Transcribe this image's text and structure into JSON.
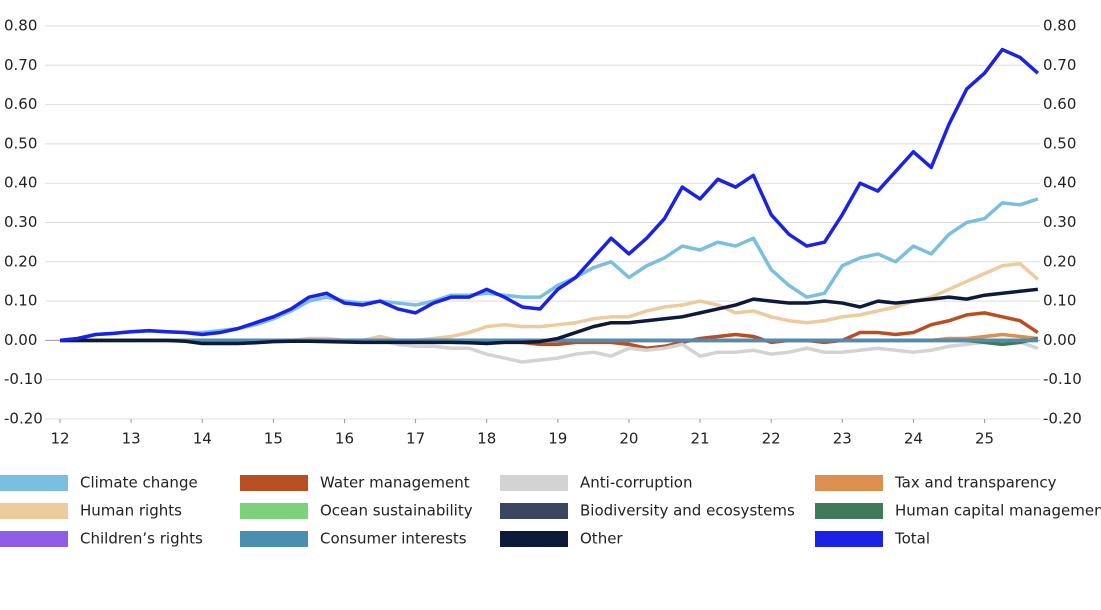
{
  "chart_data": {
    "type": "line",
    "x": [
      12,
      12.25,
      12.5,
      12.75,
      13,
      13.25,
      13.5,
      13.75,
      14,
      14.25,
      14.5,
      14.75,
      15,
      15.25,
      15.5,
      15.75,
      16,
      16.25,
      16.5,
      16.75,
      17,
      17.25,
      17.5,
      17.75,
      18,
      18.25,
      18.5,
      18.75,
      19,
      19.25,
      19.5,
      19.75,
      20,
      20.25,
      20.5,
      20.75,
      21,
      21.25,
      21.5,
      21.75,
      22,
      22.25,
      22.5,
      22.75,
      23,
      23.25,
      23.5,
      23.75,
      24,
      24.25,
      24.5,
      24.75,
      25,
      25.25,
      25.5,
      25.75
    ],
    "xlim": [
      12,
      25.78
    ],
    "xticks": [
      12,
      13,
      14,
      15,
      16,
      17,
      18,
      19,
      20,
      21,
      22,
      23,
      24,
      25
    ],
    "ylim": [
      -0.2,
      0.8
    ],
    "yticks": [
      {
        "value": -0.2,
        "label": "-0.20"
      },
      {
        "value": -0.1,
        "label": "-0.10"
      },
      {
        "value": 0,
        "label": "0.00"
      },
      {
        "value": 0.1,
        "label": "0.10"
      },
      {
        "value": 0.2,
        "label": "0.20"
      },
      {
        "value": 0.3,
        "label": "0.30"
      },
      {
        "value": 0.4,
        "label": "0.40"
      },
      {
        "value": 0.5,
        "label": "0.50"
      },
      {
        "value": 0.6,
        "label": "0.60"
      },
      {
        "value": 0.7,
        "label": "0.70"
      },
      {
        "value": 0.8,
        "label": "0.80"
      }
    ],
    "grid": true,
    "legend": "bottom",
    "series": [
      {
        "name": "Climate change",
        "color": "#7bbfe0",
        "values": [
          0,
          0.005,
          0.015,
          0.018,
          0.022,
          0.024,
          0.022,
          0.02,
          0.02,
          0.025,
          0.03,
          0.04,
          0.055,
          0.075,
          0.1,
          0.11,
          0.1,
          0.095,
          0.1,
          0.095,
          0.09,
          0.1,
          0.115,
          0.115,
          0.12,
          0.115,
          0.11,
          0.11,
          0.14,
          0.16,
          0.185,
          0.2,
          0.16,
          0.19,
          0.21,
          0.24,
          0.23,
          0.25,
          0.24,
          0.26,
          0.18,
          0.14,
          0.11,
          0.12,
          0.19,
          0.21,
          0.22,
          0.2,
          0.24,
          0.22,
          0.27,
          0.3,
          0.31,
          0.35,
          0.345,
          0.36
        ]
      },
      {
        "name": "Water management",
        "color": "#b94e21",
        "values": [
          0,
          0,
          0,
          0,
          0,
          0,
          0,
          0,
          0,
          0,
          0,
          0,
          0,
          0,
          0,
          0,
          0,
          0,
          0,
          0,
          0,
          0,
          0,
          0,
          0,
          0,
          -0.005,
          -0.01,
          -0.01,
          -0.005,
          -0.005,
          -0.005,
          -0.01,
          -0.02,
          -0.015,
          -0.005,
          0.005,
          0.01,
          0.015,
          0.01,
          -0.005,
          0,
          0,
          -0.005,
          0,
          0.02,
          0.02,
          0.015,
          0.02,
          0.04,
          0.05,
          0.065,
          0.07,
          0.06,
          0.05,
          0.02
        ]
      },
      {
        "name": "Anti-corruption",
        "color": "#d3d3d3",
        "values": [
          0,
          0,
          0,
          0,
          0,
          0,
          0,
          0,
          0,
          0,
          0,
          0,
          0,
          0,
          0,
          0,
          0,
          0,
          0,
          -0.01,
          -0.015,
          -0.015,
          -0.02,
          -0.02,
          -0.035,
          -0.045,
          -0.055,
          -0.05,
          -0.045,
          -0.035,
          -0.03,
          -0.04,
          -0.02,
          -0.025,
          -0.02,
          -0.01,
          -0.04,
          -0.03,
          -0.03,
          -0.025,
          -0.035,
          -0.03,
          -0.02,
          -0.03,
          -0.03,
          -0.025,
          -0.02,
          -0.025,
          -0.03,
          -0.025,
          -0.015,
          -0.01,
          -0.005,
          -0.01,
          -0.005,
          -0.02
        ]
      },
      {
        "name": "Tax and transparency",
        "color": "#dd8f4d",
        "values": [
          0,
          0,
          0,
          0,
          0,
          0,
          0,
          0,
          0,
          0,
          0,
          0,
          0,
          0,
          0,
          0,
          0,
          0,
          0,
          0,
          0,
          0,
          0,
          0,
          0,
          0,
          0,
          0,
          0,
          0,
          0,
          0,
          0,
          0,
          0,
          0,
          0,
          0,
          0,
          0,
          0,
          0,
          0,
          0,
          0,
          0,
          0,
          0,
          0,
          0,
          0.005,
          0.005,
          0.01,
          0.015,
          0.01,
          0.005
        ]
      },
      {
        "name": "Human rights",
        "color": "#eccb9c",
        "values": [
          0,
          0,
          0,
          0,
          0,
          0,
          0,
          0,
          0,
          0,
          0,
          0,
          0,
          0,
          0.005,
          0.005,
          0,
          0,
          0.01,
          0,
          0,
          0.005,
          0.01,
          0.02,
          0.035,
          0.04,
          0.035,
          0.035,
          0.04,
          0.045,
          0.055,
          0.06,
          0.06,
          0.075,
          0.085,
          0.09,
          0.1,
          0.09,
          0.07,
          0.075,
          0.06,
          0.05,
          0.045,
          0.05,
          0.06,
          0.065,
          0.075,
          0.085,
          0.1,
          0.11,
          0.13,
          0.15,
          0.17,
          0.19,
          0.195,
          0.155
        ]
      },
      {
        "name": "Ocean sustainability",
        "color": "#7dd17a",
        "values": [
          0,
          0,
          0,
          0,
          0,
          0,
          0,
          0,
          0,
          0,
          0,
          0,
          0,
          0,
          0,
          0,
          0,
          0,
          0,
          0,
          0,
          0,
          0,
          0,
          0,
          0,
          0,
          0,
          0,
          0,
          0,
          0,
          0,
          0,
          0,
          0,
          0,
          0,
          0,
          0,
          0,
          0,
          0,
          0,
          0,
          0,
          0,
          0,
          0,
          0,
          0,
          0,
          0,
          0,
          0,
          0
        ]
      },
      {
        "name": "Biodiversity and ecosystems",
        "color": "#3a4660",
        "values": [
          0,
          0,
          0,
          0,
          0,
          0,
          0,
          0,
          0,
          0,
          0,
          0,
          0,
          0,
          0,
          0,
          0,
          0,
          0,
          0,
          0,
          0,
          0,
          0,
          0,
          0,
          0,
          0,
          0,
          0,
          0,
          0,
          0,
          0,
          0,
          0,
          0,
          0,
          0,
          0,
          0,
          0,
          0,
          0,
          0,
          0,
          0,
          0,
          0,
          0,
          0,
          0,
          0,
          0,
          0,
          0
        ]
      },
      {
        "name": "Human capital management",
        "color": "#3f7a5a",
        "values": [
          0,
          0,
          0,
          0,
          0,
          0,
          0,
          0,
          0,
          0,
          0,
          0,
          0,
          0,
          0,
          0,
          0,
          0,
          0,
          0,
          0,
          0,
          0,
          0,
          0,
          0,
          0,
          0,
          0,
          0,
          0,
          0,
          0,
          0,
          0,
          0,
          0,
          0,
          0,
          0,
          0,
          0,
          0,
          0,
          0,
          0,
          0,
          0,
          0,
          0,
          0,
          0,
          -0.005,
          -0.01,
          -0.005,
          0.005
        ]
      },
      {
        "name": "Children’s rights",
        "color": "#8f5ce6",
        "values": [
          0,
          0,
          0,
          0,
          0,
          0,
          0,
          0,
          0,
          0,
          0,
          0,
          0,
          0,
          0,
          0,
          0,
          0,
          0,
          0,
          0,
          0,
          0,
          0,
          0,
          0,
          0,
          0,
          0,
          0,
          0,
          0,
          0,
          0,
          0,
          0,
          0,
          0,
          0,
          0,
          0,
          0,
          0,
          0,
          0,
          0,
          0,
          0,
          0,
          0,
          0,
          0,
          0,
          0,
          0,
          0
        ]
      },
      {
        "name": "Consumer interests",
        "color": "#4b8fb0",
        "values": [
          0,
          0,
          0,
          0,
          0,
          0,
          0,
          0,
          0,
          0,
          0,
          0,
          0,
          0,
          0,
          0,
          0,
          0,
          0,
          0,
          0,
          0,
          0,
          0,
          0,
          0,
          0,
          0,
          0,
          0,
          0,
          0,
          0,
          0,
          0,
          0,
          0,
          0,
          0,
          0,
          0,
          0,
          0,
          0,
          0,
          0,
          0,
          0,
          0,
          0,
          0,
          0,
          0,
          0,
          0,
          0
        ]
      },
      {
        "name": "Other",
        "color": "#0d1a3a",
        "values": [
          0,
          0,
          0,
          0,
          0,
          0,
          0,
          -0.002,
          -0.008,
          -0.008,
          -0.008,
          -0.006,
          -0.003,
          -0.002,
          -0.002,
          -0.003,
          -0.004,
          -0.005,
          -0.005,
          -0.005,
          -0.005,
          -0.005,
          -0.005,
          -0.006,
          -0.008,
          -0.005,
          -0.005,
          -0.003,
          0.005,
          0.02,
          0.035,
          0.045,
          0.045,
          0.05,
          0.055,
          0.06,
          0.07,
          0.08,
          0.09,
          0.105,
          0.1,
          0.095,
          0.095,
          0.1,
          0.095,
          0.085,
          0.1,
          0.095,
          0.1,
          0.105,
          0.11,
          0.105,
          0.115,
          0.12,
          0.125,
          0.13
        ]
      },
      {
        "name": "Total",
        "color": "#1a22e6",
        "values": [
          0,
          0.005,
          0.015,
          0.018,
          0.022,
          0.025,
          0.022,
          0.02,
          0.015,
          0.02,
          0.03,
          0.045,
          0.06,
          0.08,
          0.11,
          0.12,
          0.095,
          0.09,
          0.1,
          0.08,
          0.07,
          0.095,
          0.11,
          0.11,
          0.13,
          0.11,
          0.085,
          0.08,
          0.13,
          0.16,
          0.21,
          0.26,
          0.22,
          0.26,
          0.31,
          0.39,
          0.36,
          0.41,
          0.39,
          0.42,
          0.32,
          0.27,
          0.24,
          0.25,
          0.32,
          0.4,
          0.38,
          0.43,
          0.48,
          0.44,
          0.55,
          0.64,
          0.68,
          0.74,
          0.72,
          0.68
        ]
      }
    ]
  }
}
